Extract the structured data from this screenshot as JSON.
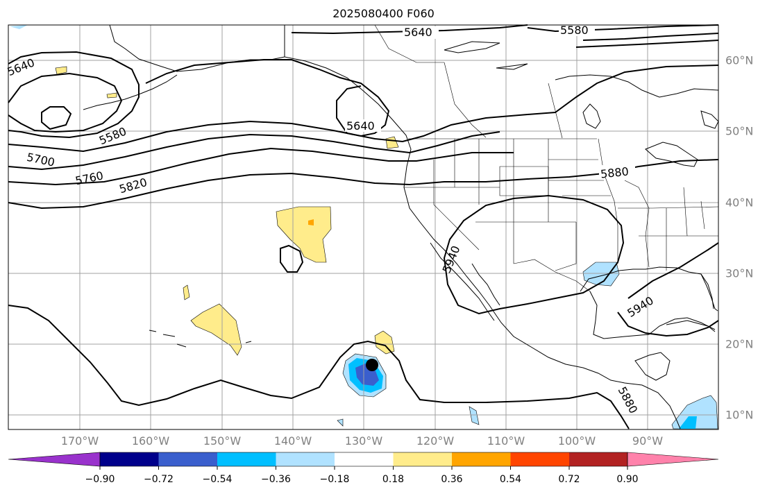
{
  "title": "2025080400 F060",
  "latitude_labels": [
    "60°N",
    "50°N",
    "40°N",
    "30°N",
    "20°N",
    "10°N"
  ],
  "longitude_labels": [
    "170°W",
    "160°W",
    "150°W",
    "140°W",
    "130°W",
    "120°W",
    "110°W",
    "100°W",
    "90°W"
  ],
  "contour_labels": [
    "5640",
    "5580",
    "5640",
    "5580",
    "5640",
    "5700",
    "5760",
    "5820",
    "5880",
    "5940",
    "5940",
    "5880"
  ],
  "colorbar": {
    "ticks": [
      "−0.90",
      "−0.72",
      "−0.54",
      "−0.36",
      "−0.18",
      "0.18",
      "0.36",
      "0.54",
      "0.72",
      "0.90"
    ],
    "colors": [
      "#9932cc",
      "#00008b",
      "#3a5fcd",
      "#00bfff",
      "#b0e2ff",
      "#ffffff",
      "#ffec8b",
      "#ffa500",
      "#ff4500",
      "#b22222",
      "#ff82ab"
    ]
  },
  "colors": {
    "contour": "#000000",
    "coast": "#000000",
    "grid": "#a0a0a0",
    "land": "#ffffff",
    "ocean": "#ffffff"
  }
}
